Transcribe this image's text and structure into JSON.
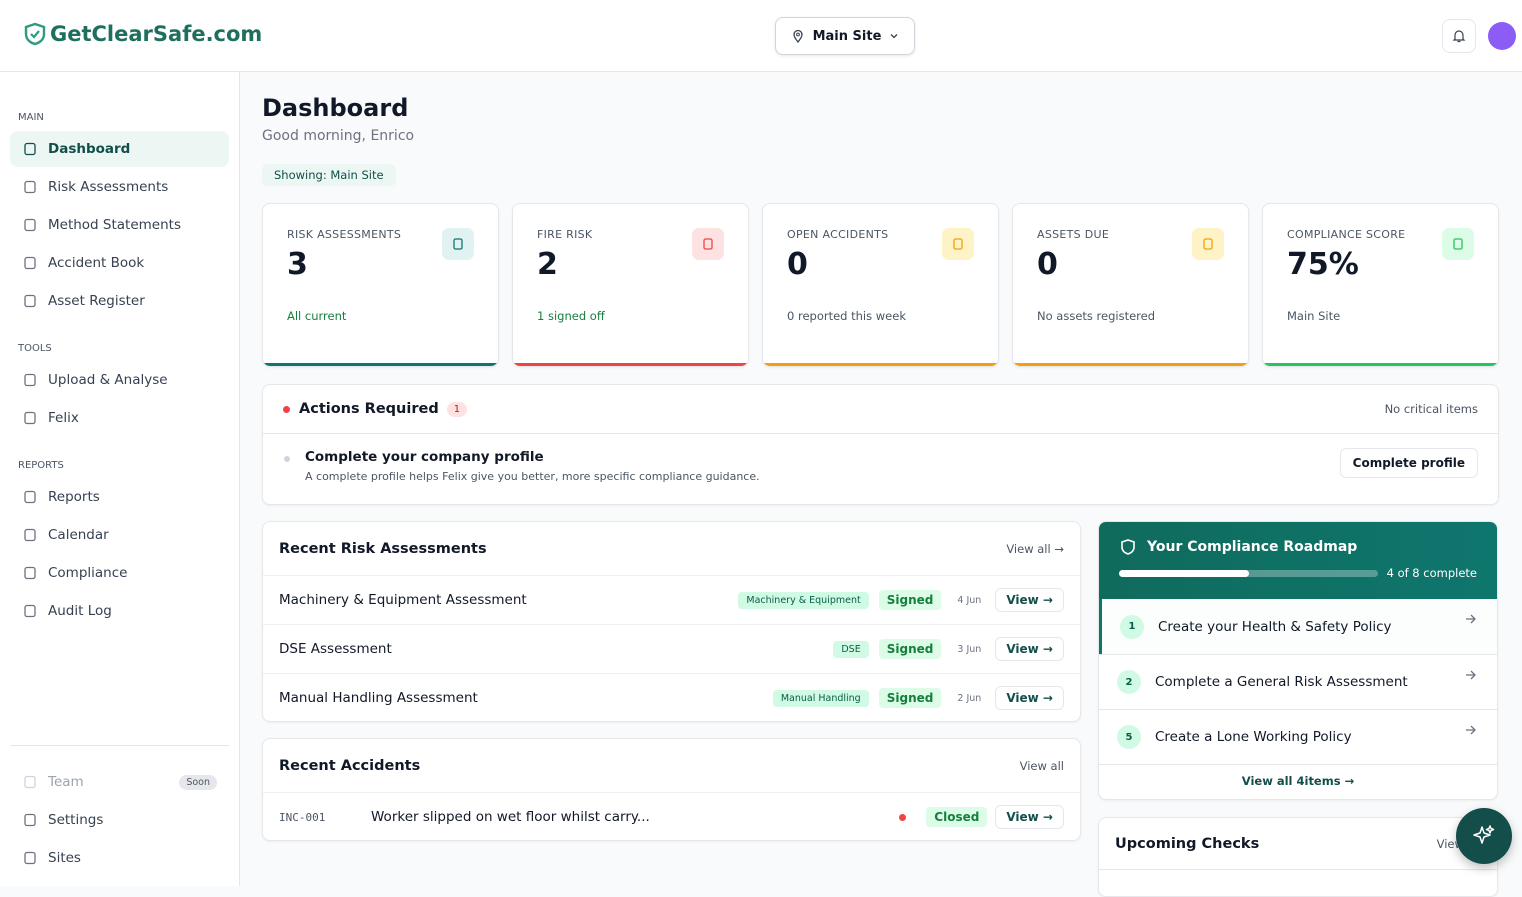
{
  "header": {
    "logo": "GetClearSafe.com",
    "site": "Main Site"
  },
  "sidebar": {
    "sections": [
      {
        "title": "MAIN",
        "items": [
          "Dashboard",
          "Risk Assessments",
          "Method Statements",
          "Accident Book",
          "Asset Register"
        ]
      },
      {
        "title": "TOOLS",
        "items": [
          "Upload & Analyse",
          "Felix"
        ]
      },
      {
        "title": "REPORTS",
        "items": [
          "Reports",
          "Calendar",
          "Compliance",
          "Audit Log"
        ]
      }
    ],
    "footer": [
      {
        "label": "Team",
        "badge": "Soon"
      },
      {
        "label": "Settings"
      },
      {
        "label": "Sites"
      }
    ]
  },
  "page": {
    "title": "Dashboard",
    "greeting": "Good morning, Enrico",
    "showing": "Showing: Main Site"
  },
  "stats": [
    {
      "label": "RISK ASSESSMENTS",
      "value": "3",
      "note": "All current"
    },
    {
      "label": "FIRE RISK",
      "value": "2",
      "note": "1 signed off"
    },
    {
      "label": "OPEN ACCIDENTS",
      "value": "0",
      "note": "0 reported this week"
    },
    {
      "label": "ASSETS DUE",
      "value": "0",
      "note": "No assets registered"
    },
    {
      "label": "COMPLIANCE SCORE",
      "value": "75%",
      "note": "Main Site"
    }
  ],
  "actions": {
    "title": "Actions Required",
    "count": "1",
    "status": "No critical items",
    "items": [
      {
        "title": "Complete your company profile",
        "desc": "A complete profile helps Felix give you better, more specific compliance guidance.",
        "button": "Complete profile"
      }
    ]
  },
  "recent_risk": {
    "title": "Recent Risk Assessments",
    "view_all": "View all →",
    "rows": [
      {
        "name": "Machinery & Equipment Assessment",
        "tag": "Machinery & Equipment",
        "status": "Signed",
        "date": "4 Jun",
        "action": "View →"
      },
      {
        "name": "DSE Assessment",
        "tag": "DSE",
        "status": "Signed",
        "date": "3 Jun",
        "action": "View →"
      },
      {
        "name": "Manual Handling Assessment",
        "tag": "Manual Handling",
        "status": "Signed",
        "date": "2 Jun",
        "action": "View →"
      }
    ]
  },
  "recent_accidents": {
    "title": "Recent Accidents",
    "view_all": "View all",
    "rows": [
      {
        "id": "INC-001",
        "desc": "Worker slipped on wet floor whilst carry...",
        "status": "Closed",
        "action": "View →"
      }
    ]
  },
  "roadmap": {
    "title": "Your Compliance Roadmap",
    "progress": "4 of 8 complete",
    "steps": [
      {
        "n": "1",
        "label": "Create your Health & Safety Policy"
      },
      {
        "n": "2",
        "label": "Complete a General Risk Assessment"
      },
      {
        "n": "5",
        "label": "Create a Lone Working Policy"
      }
    ],
    "view_all": "View all 4items →"
  },
  "upcoming": {
    "title": "Upcoming Checks",
    "view_all": "View all"
  }
}
